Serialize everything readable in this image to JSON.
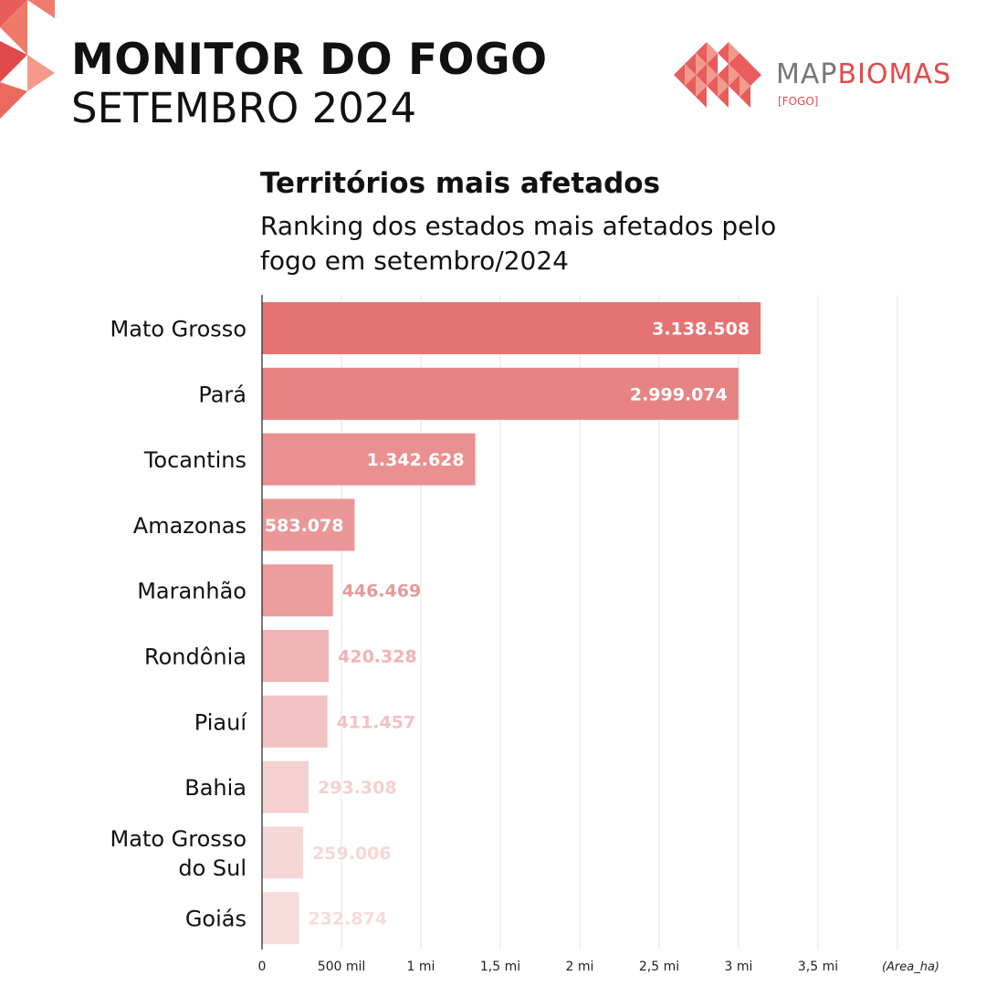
{
  "header": {
    "title": "MONITOR DO FOGO",
    "subtitle": "SETEMBRO 2024"
  },
  "logo": {
    "word_map": "MAP",
    "word_biomas": "BIOMAS",
    "tag": "[FOGO]"
  },
  "chart_data": {
    "type": "bar",
    "orientation": "horizontal",
    "title": "Territórios mais afetados",
    "subtitle": "Ranking dos estados mais afetados pelo fogo em setembro/2024",
    "categories": [
      "Mato Grosso",
      "Pará",
      "Tocantins",
      "Amazonas",
      "Maranhão",
      "Rondônia",
      "Piauí",
      "Bahia",
      "Mato Grosso do Sul",
      "Goiás"
    ],
    "values": [
      3138508,
      2999074,
      1342628,
      583078,
      446469,
      420328,
      411457,
      293308,
      259006,
      232874
    ],
    "value_labels": [
      "3.138.508",
      "2.999.074",
      "1.342.628",
      "583.078",
      "446.469",
      "420.328",
      "411.457",
      "293.308",
      "259.006",
      "232.874"
    ],
    "xlim": [
      0,
      4000000
    ],
    "xticks": [
      0,
      500000,
      1000000,
      1500000,
      2000000,
      2500000,
      3000000,
      3500000
    ],
    "xtick_labels": [
      "0",
      "500 mil",
      "1 mi",
      "1,5 mi",
      "2 mi",
      "2,5 mi",
      "3 mi",
      "3,5 mi"
    ],
    "unit_label": "(Area_ha)",
    "grid": true,
    "colors": [
      "#e57373",
      "#e88383",
      "#ea9090",
      "#eb9797",
      "#ed9d9d",
      "#f0b4b4",
      "#f2c1c1",
      "#f5d0d0",
      "#f6d7d7",
      "#f7dbdb"
    ],
    "accent": "#e04a4a"
  }
}
